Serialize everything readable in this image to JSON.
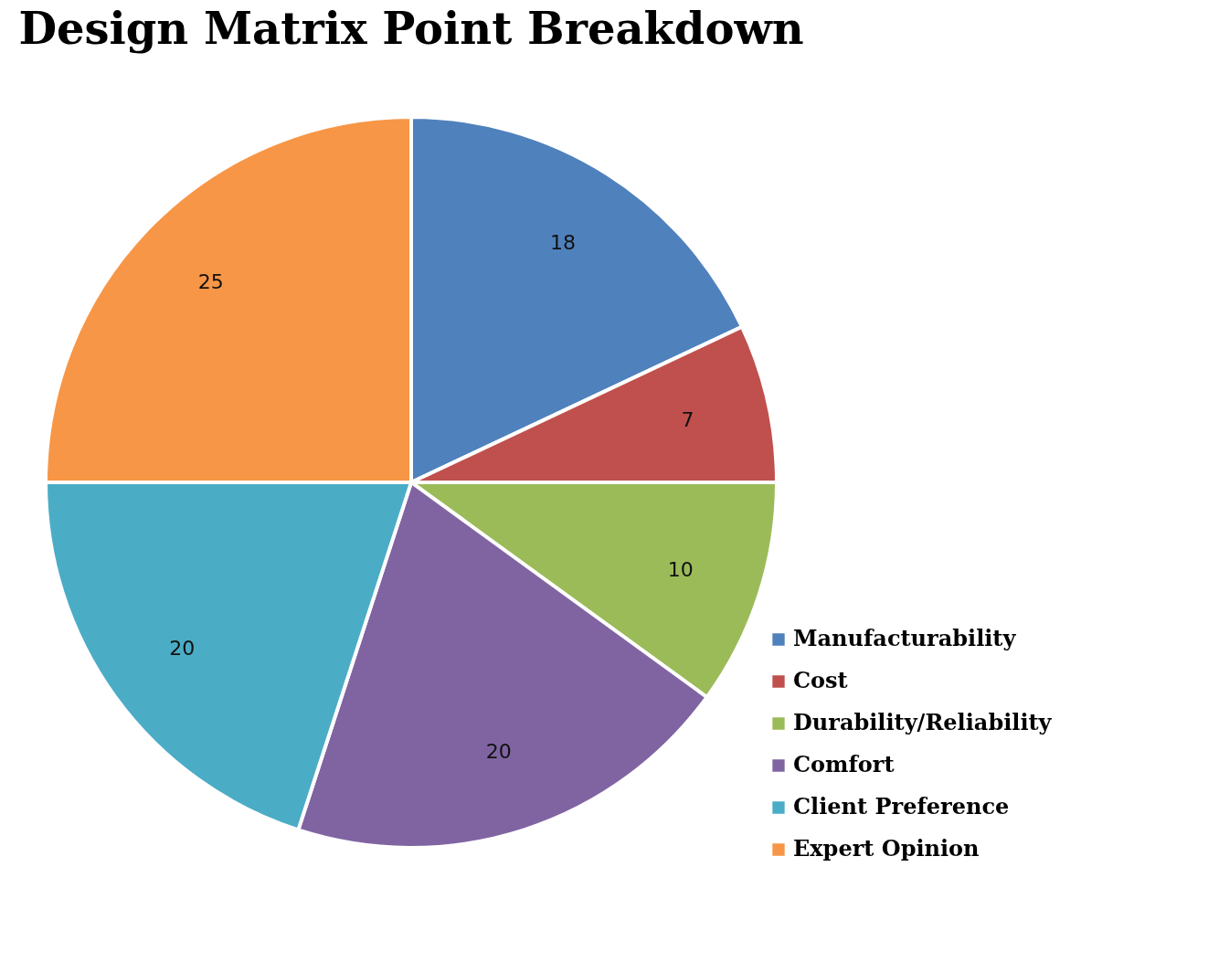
{
  "chart_data": {
    "type": "pie",
    "title": "Design Matrix Point Breakdown",
    "categories": [
      "Manufacturability",
      "Cost",
      "Durability/Reliability",
      "Comfort",
      "Client Preference",
      "Expert Opinion"
    ],
    "values": [
      18,
      7,
      10,
      20,
      20,
      25
    ],
    "colors": [
      "#4f81bd",
      "#c0504d",
      "#9bbb59",
      "#8064a2",
      "#4bacc6",
      "#f79646"
    ],
    "data_labels": true,
    "legend": "bottom right"
  }
}
